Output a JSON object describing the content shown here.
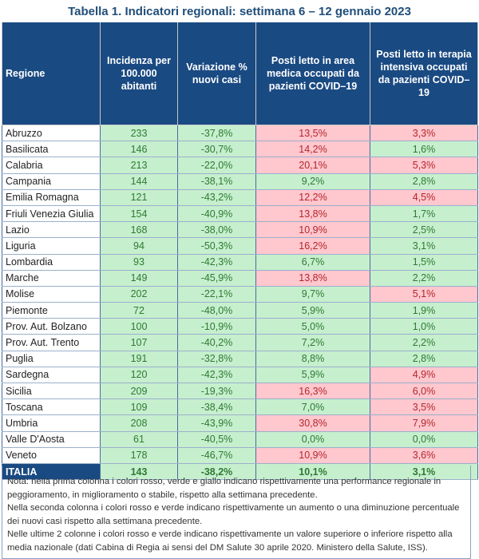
{
  "title": "Tabella 1. Indicatori regionali: settimana 6 – 12 gennaio 2023",
  "headers": [
    "Regione",
    "Incidenza per 100.000 abitanti",
    "Variazione % nuovi casi",
    "Posti letto in area medica occupati da pazienti COVID–19",
    "Posti letto in terapia intensiva occupati da pazienti COVID–19"
  ],
  "colors": {
    "header": "#1a4a82",
    "green_cell": "#c6efce",
    "red_cell": "#ffc7ce",
    "green_text": "#2f7a32",
    "red_text": "#b3262c"
  },
  "rows": [
    {
      "regione": "Abruzzo",
      "incidenza": "233",
      "variazione": "-37,8%",
      "area_medica": "13,5%",
      "terapia_intensiva": "3,3%",
      "status": [
        "g",
        "g",
        "r",
        "r"
      ]
    },
    {
      "regione": "Basilicata",
      "incidenza": "146",
      "variazione": "-30,7%",
      "area_medica": "14,2%",
      "terapia_intensiva": "1,6%",
      "status": [
        "g",
        "g",
        "r",
        "g"
      ]
    },
    {
      "regione": "Calabria",
      "incidenza": "213",
      "variazione": "-22,0%",
      "area_medica": "20,1%",
      "terapia_intensiva": "5,3%",
      "status": [
        "g",
        "g",
        "r",
        "r"
      ]
    },
    {
      "regione": "Campania",
      "incidenza": "144",
      "variazione": "-38,1%",
      "area_medica": "9,2%",
      "terapia_intensiva": "2,8%",
      "status": [
        "g",
        "g",
        "g",
        "g"
      ]
    },
    {
      "regione": "Emilia Romagna",
      "incidenza": "121",
      "variazione": "-43,2%",
      "area_medica": "12,2%",
      "terapia_intensiva": "4,5%",
      "status": [
        "g",
        "g",
        "r",
        "r"
      ]
    },
    {
      "regione": "Friuli Venezia Giulia",
      "incidenza": "154",
      "variazione": "-40,9%",
      "area_medica": "13,8%",
      "terapia_intensiva": "1,7%",
      "status": [
        "g",
        "g",
        "r",
        "g"
      ]
    },
    {
      "regione": "Lazio",
      "incidenza": "168",
      "variazione": "-38,0%",
      "area_medica": "10,9%",
      "terapia_intensiva": "2,5%",
      "status": [
        "g",
        "g",
        "r",
        "g"
      ]
    },
    {
      "regione": "Liguria",
      "incidenza": "94",
      "variazione": "-50,3%",
      "area_medica": "16,2%",
      "terapia_intensiva": "3,1%",
      "status": [
        "g",
        "g",
        "r",
        "g"
      ]
    },
    {
      "regione": "Lombardia",
      "incidenza": "93",
      "variazione": "-42,3%",
      "area_medica": "6,7%",
      "terapia_intensiva": "1,5%",
      "status": [
        "g",
        "g",
        "g",
        "g"
      ]
    },
    {
      "regione": "Marche",
      "incidenza": "149",
      "variazione": "-45,9%",
      "area_medica": "13,8%",
      "terapia_intensiva": "2,2%",
      "status": [
        "g",
        "g",
        "r",
        "g"
      ]
    },
    {
      "regione": "Molise",
      "incidenza": "202",
      "variazione": "-22,1%",
      "area_medica": "9,7%",
      "terapia_intensiva": "5,1%",
      "status": [
        "g",
        "g",
        "g",
        "r"
      ]
    },
    {
      "regione": "Piemonte",
      "incidenza": "72",
      "variazione": "-48,0%",
      "area_medica": "5,9%",
      "terapia_intensiva": "1,9%",
      "status": [
        "g",
        "g",
        "g",
        "g"
      ]
    },
    {
      "regione": "Prov. Aut. Bolzano",
      "incidenza": "100",
      "variazione": "-10,9%",
      "area_medica": "5,0%",
      "terapia_intensiva": "1,0%",
      "status": [
        "g",
        "g",
        "g",
        "g"
      ]
    },
    {
      "regione": "Prov. Aut. Trento",
      "incidenza": "107",
      "variazione": "-40,2%",
      "area_medica": "7,2%",
      "terapia_intensiva": "2,2%",
      "status": [
        "g",
        "g",
        "g",
        "g"
      ]
    },
    {
      "regione": "Puglia",
      "incidenza": "191",
      "variazione": "-32,8%",
      "area_medica": "8,8%",
      "terapia_intensiva": "2,8%",
      "status": [
        "g",
        "g",
        "g",
        "g"
      ]
    },
    {
      "regione": "Sardegna",
      "incidenza": "120",
      "variazione": "-42,3%",
      "area_medica": "5,9%",
      "terapia_intensiva": "4,9%",
      "status": [
        "g",
        "g",
        "g",
        "r"
      ]
    },
    {
      "regione": "Sicilia",
      "incidenza": "209",
      "variazione": "-19,3%",
      "area_medica": "16,3%",
      "terapia_intensiva": "6,0%",
      "status": [
        "g",
        "g",
        "r",
        "r"
      ]
    },
    {
      "regione": "Toscana",
      "incidenza": "109",
      "variazione": "-38,4%",
      "area_medica": "7,0%",
      "terapia_intensiva": "3,5%",
      "status": [
        "g",
        "g",
        "g",
        "r"
      ]
    },
    {
      "regione": "Umbria",
      "incidenza": "208",
      "variazione": "-43,9%",
      "area_medica": "30,8%",
      "terapia_intensiva": "7,9%",
      "status": [
        "g",
        "g",
        "r",
        "r"
      ]
    },
    {
      "regione": "Valle D'Aosta",
      "incidenza": "61",
      "variazione": "-40,5%",
      "area_medica": "0,0%",
      "terapia_intensiva": "0,0%",
      "status": [
        "g",
        "g",
        "g",
        "g"
      ]
    },
    {
      "regione": "Veneto",
      "incidenza": "178",
      "variazione": "-46,7%",
      "area_medica": "10,9%",
      "terapia_intensiva": "3,6%",
      "status": [
        "g",
        "g",
        "r",
        "r"
      ]
    }
  ],
  "italia": {
    "regione": "ITALIA",
    "incidenza": "143",
    "variazione": "-38,2%",
    "area_medica": "10,1%",
    "terapia_intensiva": "3,1%",
    "status": [
      "g",
      "g",
      "g",
      "g"
    ]
  },
  "note": [
    "Nota: nella prima colonna i colori rosso, verde e giallo indicano rispettivamente una performance regionale in peggioramento, in miglioramento o stabile, rispetto alla settimana precedente.",
    "Nella seconda colonna i colori rosso e verde indicano rispettivamente un aumento o una diminuzione percentuale dei nuovi casi rispetto alla settimana precedente.",
    "Nelle ultime 2 colonne i colori rosso e verde indicano rispettivamente un valore superiore o inferiore rispetto alla media nazionale (dati Cabina di Regia ai sensi del DM Salute 30 aprile 2020. Ministero della Salute, ISS)."
  ]
}
